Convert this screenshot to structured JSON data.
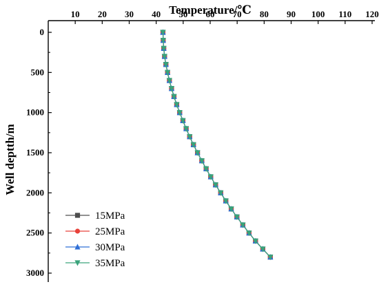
{
  "chart_data": {
    "type": "line",
    "xlabel": "Temperature/℃",
    "ylabel": "Well deptth/m",
    "xlim": [
      0,
      120
    ],
    "ylim": [
      0,
      3000
    ],
    "y_inverted": true,
    "x_axis_position": "top",
    "x_ticks": [
      10,
      20,
      30,
      40,
      50,
      60,
      70,
      80,
      90,
      100,
      110,
      120
    ],
    "y_ticks": [
      0,
      500,
      1000,
      1500,
      2000,
      2500,
      3000
    ],
    "grid": false,
    "legend_position": "bottom-left",
    "depth": [
      0,
      100,
      200,
      300,
      400,
      500,
      600,
      700,
      800,
      900,
      1000,
      1100,
      1200,
      1300,
      1400,
      1500,
      1600,
      1700,
      1800,
      1900,
      2000,
      2100,
      2200,
      2300,
      2400,
      2500,
      2600,
      2700,
      2800
    ],
    "series": [
      {
        "name": "15MPa",
        "color": "#4d4d4d",
        "marker": "square",
        "temperature": [
          42.5,
          42.6,
          42.8,
          43.1,
          43.6,
          44.2,
          44.9,
          45.7,
          46.6,
          47.6,
          48.7,
          49.9,
          51.1,
          52.4,
          53.8,
          55.3,
          56.9,
          58.5,
          60.2,
          62.0,
          63.9,
          65.8,
          67.8,
          69.9,
          72.1,
          74.4,
          76.8,
          79.5,
          82.3
        ]
      },
      {
        "name": "25MPa",
        "color": "#e8413a",
        "marker": "circle",
        "temperature": [
          42.5,
          42.6,
          42.8,
          43.1,
          43.6,
          44.2,
          44.9,
          45.7,
          46.6,
          47.6,
          48.7,
          49.9,
          51.1,
          52.4,
          53.8,
          55.3,
          56.9,
          58.5,
          60.2,
          62.0,
          63.9,
          65.8,
          67.8,
          69.9,
          72.1,
          74.4,
          76.8,
          79.5,
          82.3
        ]
      },
      {
        "name": "30MPa",
        "color": "#2f6fd6",
        "marker": "triangle-up",
        "temperature": [
          42.5,
          42.6,
          42.8,
          43.1,
          43.6,
          44.2,
          44.9,
          45.7,
          46.6,
          47.6,
          48.7,
          49.9,
          51.1,
          52.4,
          53.8,
          55.3,
          56.9,
          58.5,
          60.2,
          62.0,
          63.9,
          65.8,
          67.8,
          69.9,
          72.1,
          74.4,
          76.8,
          79.5,
          82.3
        ]
      },
      {
        "name": "35MPa",
        "color": "#3aa37b",
        "marker": "triangle-down",
        "temperature": [
          42.5,
          42.6,
          42.8,
          43.1,
          43.6,
          44.2,
          44.9,
          45.7,
          46.6,
          47.6,
          48.7,
          49.9,
          51.1,
          52.4,
          53.8,
          55.3,
          56.9,
          58.5,
          60.2,
          62.0,
          63.9,
          65.8,
          67.8,
          69.9,
          72.1,
          74.4,
          76.8,
          79.5,
          82.3
        ]
      }
    ]
  }
}
